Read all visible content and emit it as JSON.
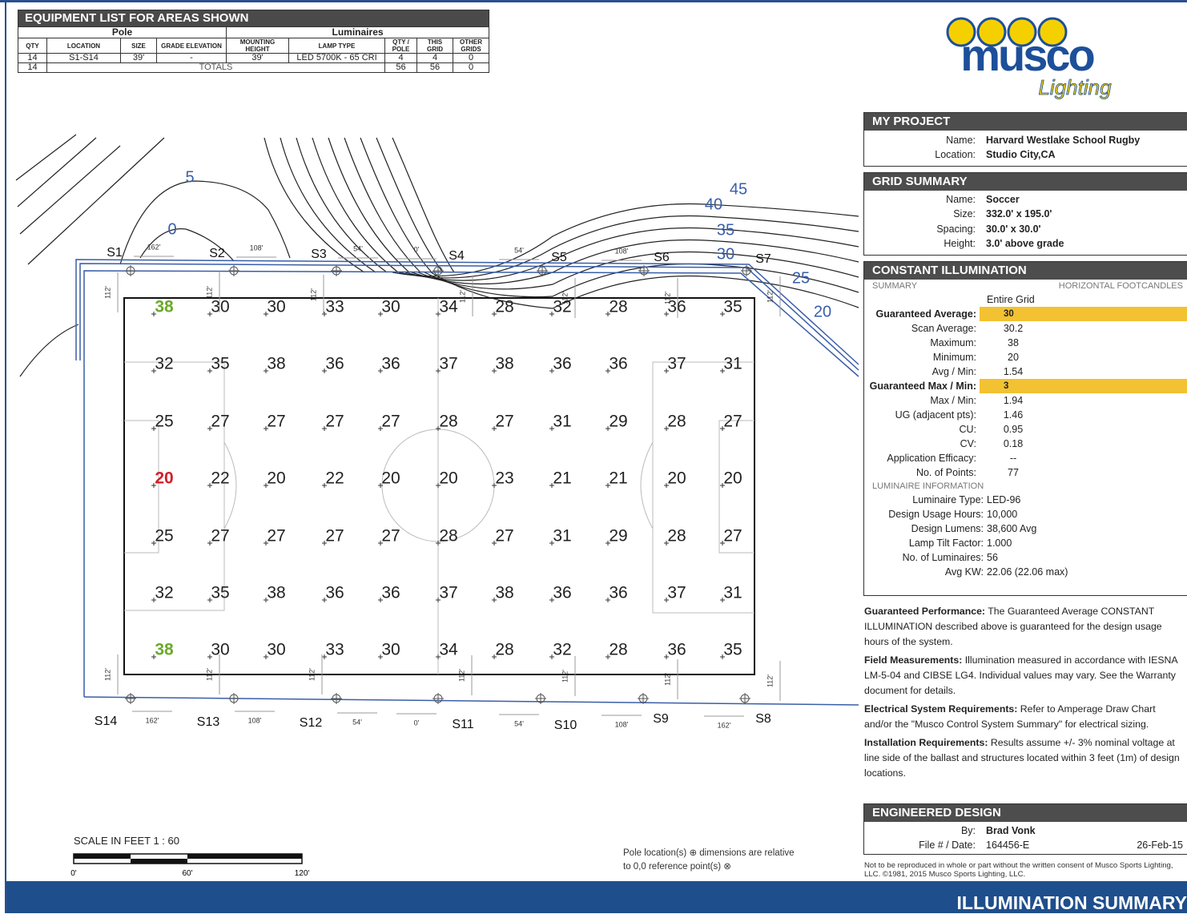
{
  "equipment_list": {
    "title": "EQUIPMENT LIST FOR AREAS SHOWN",
    "groups": [
      "Pole",
      "Luminaires"
    ],
    "columns": [
      "QTY",
      "LOCATION",
      "SIZE",
      "GRADE ELEVATION",
      "MOUNTING HEIGHT",
      "LAMP TYPE",
      "QTY / POLE",
      "THIS GRID",
      "OTHER GRIDS"
    ],
    "rows": [
      [
        14,
        "S1-S14",
        "39'",
        "-",
        "39'",
        "LED 5700K - 65 CRI",
        4,
        4,
        0
      ]
    ],
    "totals": {
      "qty": 14,
      "label": "TOTALS",
      "values": [
        56,
        56,
        0
      ]
    }
  },
  "logo": {
    "name": "musco",
    "tagline": "Lighting"
  },
  "my_project": {
    "title": "MY PROJECT",
    "fields": [
      {
        "label": "Name:",
        "value": "Harvard Westlake School Rugby"
      },
      {
        "label": "Location:",
        "value": "Studio City,CA"
      }
    ]
  },
  "grid_summary": {
    "title": "GRID SUMMARY",
    "fields": [
      {
        "label": "Name:",
        "value": "Soccer"
      },
      {
        "label": "Size:",
        "value": "332.0' x 195.0'"
      },
      {
        "label": "Spacing:",
        "value": "30.0' x 30.0'"
      },
      {
        "label": "Height:",
        "value": "3.0' above grade"
      }
    ]
  },
  "constant_illumination": {
    "title": "CONSTANT ILLUMINATION",
    "summary_label": "SUMMARY",
    "units": "HORIZONTAL FOOTCANDLES",
    "column": "Entire Grid",
    "rows": [
      {
        "label": "Guaranteed Average:",
        "value": 30,
        "highlight": true
      },
      {
        "label": "Scan Average:",
        "value": 30.2
      },
      {
        "label": "Maximum:",
        "value": 38
      },
      {
        "label": "Minimum:",
        "value": 20
      },
      {
        "label": "Avg / Min:",
        "value": 1.54
      },
      {
        "label": "Guaranteed Max / Min:",
        "value": 3,
        "highlight": true
      },
      {
        "label": "Max / Min:",
        "value": 1.94
      },
      {
        "label": "UG (adjacent pts):",
        "value": 1.46
      },
      {
        "label": "CU:",
        "value": 0.95
      },
      {
        "label": "CV:",
        "value": 0.18
      },
      {
        "label": "Application Efficacy:",
        "value": "--"
      },
      {
        "label": "No. of Points:",
        "value": 77
      }
    ],
    "luminaire_label": "LUMINAIRE INFORMATION",
    "luminaire_rows": [
      {
        "label": "Luminaire Type:",
        "value": "LED-96"
      },
      {
        "label": "Design Usage Hours:",
        "value": "10,000"
      },
      {
        "label": "Design Lumens:",
        "value": "38,600  Avg"
      },
      {
        "label": "Lamp Tilt Factor:",
        "value": "1.000"
      },
      {
        "label": "No. of Luminaires:",
        "value": 56
      },
      {
        "label": "Avg KW:",
        "value": "22.06  (22.06 max)"
      }
    ]
  },
  "notes": [
    {
      "heading": "Guaranteed Performance:",
      "text": "The Guaranteed Average CONSTANT ILLUMINATION described above is guaranteed for the design usage hours of the system."
    },
    {
      "heading": "Field Measurements:",
      "text": "Illumination measured in accordance with IESNA LM-5-04 and CIBSE LG4. Individual values may vary. See the Warranty document for details."
    },
    {
      "heading": "Electrical System Requirements:",
      "text": "Refer to Amperage Draw Chart and/or the \"Musco Control System Summary\" for electrical sizing."
    },
    {
      "heading": "Installation Requirements:",
      "text": "Results assume +/- 3% nominal voltage at line side of the ballast and structures located within 3 feet (1m) of design locations."
    }
  ],
  "engineered_design": {
    "title": "ENGINEERED DESIGN",
    "by_label": "By:",
    "by": "Brad Vonk",
    "file_label": "File # / Date:",
    "file": "164456-E",
    "date": "26-Feb-15"
  },
  "copyright": "Not to be reproduced in whole or part without the written consent of Musco Sports Lighting, LLC. ©1981, 2015 Musco Sports Lighting, LLC.",
  "footer": "ILLUMINATION SUMMARY",
  "scale": {
    "label": "SCALE IN FEET 1 : 60",
    "ticks": [
      "0'",
      "60'",
      "120'"
    ]
  },
  "pole_note": [
    "Pole location(s)  ⊕ dimensions are relative",
    "to 0,0 reference point(s)  ⊗"
  ],
  "field": {
    "grid": [
      [
        38,
        30,
        30,
        33,
        30,
        34,
        28,
        32,
        28,
        36,
        35
      ],
      [
        32,
        35,
        38,
        36,
        36,
        37,
        38,
        36,
        36,
        37,
        31
      ],
      [
        25,
        27,
        27,
        27,
        27,
        28,
        27,
        31,
        29,
        28,
        27
      ],
      [
        20,
        22,
        20,
        22,
        20,
        20,
        23,
        21,
        21,
        20,
        20
      ],
      [
        25,
        27,
        27,
        27,
        27,
        28,
        27,
        31,
        29,
        28,
        27
      ],
      [
        32,
        35,
        38,
        36,
        36,
        37,
        38,
        36,
        36,
        37,
        31
      ],
      [
        38,
        30,
        30,
        33,
        30,
        34,
        28,
        32,
        28,
        36,
        35
      ]
    ],
    "contour_labels": [
      "5",
      "0",
      "45",
      "40",
      "35",
      "30",
      "25",
      "20"
    ],
    "poles_top": [
      "S1",
      "S2",
      "S3",
      "S4",
      "S5",
      "S6",
      "S7"
    ],
    "poles_bottom": [
      "S14",
      "S13",
      "S12",
      "S11",
      "S10",
      "S9",
      "S8"
    ],
    "dims_top": [
      "162'",
      "108'",
      "54'",
      "0'",
      "54'",
      "108'"
    ],
    "dims_bottom": [
      "162'",
      "108'",
      "54'",
      "0'",
      "54'",
      "108'",
      "162'"
    ],
    "side_dims": [
      "112'",
      "112'",
      "112'",
      "112'",
      "112'",
      "112'",
      "112'",
      "112'",
      "112'",
      "112'",
      "112'",
      "112'",
      "112'",
      "112'"
    ]
  }
}
